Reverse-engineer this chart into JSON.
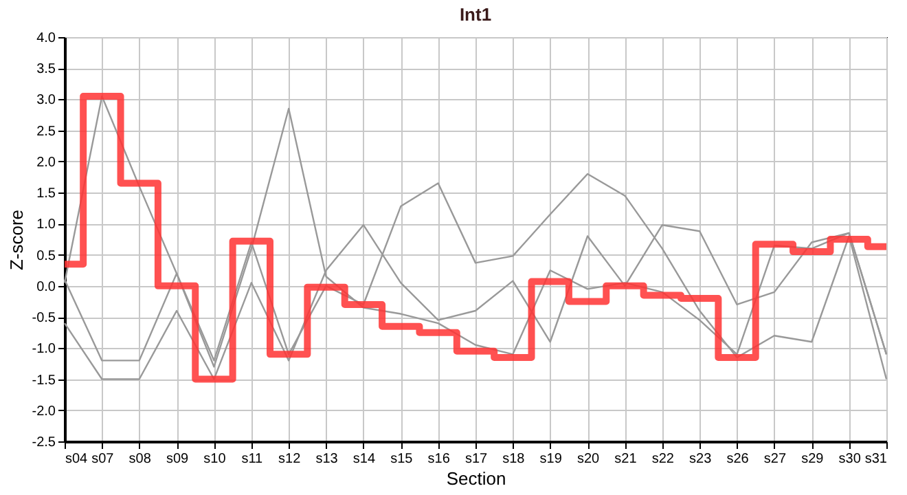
{
  "chart_data": {
    "type": "line",
    "title": "Int1",
    "xlabel": "Section",
    "ylabel": "Z-score",
    "categories": [
      "s04",
      "s07",
      "s08",
      "s09",
      "s10",
      "s11",
      "s12",
      "s13",
      "s14",
      "s15",
      "s16",
      "s17",
      "s18",
      "s19",
      "s20",
      "s21",
      "s22",
      "s23",
      "s26",
      "s27",
      "s29",
      "s30",
      "s31"
    ],
    "series": [
      {
        "color": "#999999",
        "values": [
          0.05,
          3.05,
          1.6,
          0.2,
          -1.3,
          0.6,
          2.85,
          0.15,
          -0.35,
          -0.45,
          -0.6,
          -0.95,
          -1.1,
          0.25,
          -0.05,
          0.05,
          -0.1,
          -0.55,
          -1.1,
          0.65,
          0.6,
          0.85,
          -1.1
        ]
      },
      {
        "color": "#999999",
        "values": [
          -0.6,
          -1.5,
          -1.5,
          -0.4,
          -1.5,
          0.05,
          -1.2,
          0.25,
          0.98,
          0.05,
          -0.55,
          -0.4,
          0.08,
          -0.9,
          0.8,
          0.0,
          0.98,
          0.88,
          -0.3,
          -0.1,
          0.7,
          0.85,
          -1.1
        ]
      },
      {
        "color": "#999999",
        "values": [
          0.1,
          -1.2,
          -1.2,
          0.2,
          -1.2,
          0.7,
          -1.1,
          0.0,
          -0.3,
          1.28,
          1.65,
          0.37,
          0.48,
          1.15,
          1.8,
          1.45,
          0.6,
          -0.4,
          -1.15,
          -0.8,
          -0.9,
          0.8,
          -1.5
        ]
      },
      {
        "type": "step",
        "color": "#ff3333",
        "values": [
          0.35,
          3.05,
          1.65,
          0.0,
          -1.5,
          0.72,
          -1.1,
          -0.02,
          -0.3,
          -0.65,
          -0.75,
          -1.05,
          -1.15,
          0.07,
          -0.25,
          0.0,
          -0.15,
          -0.2,
          -1.15,
          0.67,
          0.55,
          0.75,
          0.63
        ]
      }
    ],
    "ylim": [
      -2.5,
      4.0
    ],
    "yticks": [
      {
        "value": -2.5,
        "label": "-2.5"
      },
      {
        "value": -2,
        "label": "-2.0"
      },
      {
        "value": -1.5,
        "label": "-1.5"
      },
      {
        "value": -1,
        "label": "-1.0"
      },
      {
        "value": -0.5,
        "label": "-0.5"
      },
      {
        "value": 0,
        "label": "0.0"
      },
      {
        "value": 0.5,
        "label": "0.5"
      },
      {
        "value": 1,
        "label": "1.0"
      },
      {
        "value": 1.5,
        "label": "1.5"
      },
      {
        "value": 2,
        "label": "2.0"
      },
      {
        "value": 2.5,
        "label": "2.5"
      },
      {
        "value": 3,
        "label": "3.0"
      },
      {
        "value": 3.5,
        "label": "3.5"
      },
      {
        "value": 4,
        "label": "4.0"
      }
    ],
    "grid": true,
    "marker": "none",
    "line_style": "solid"
  }
}
